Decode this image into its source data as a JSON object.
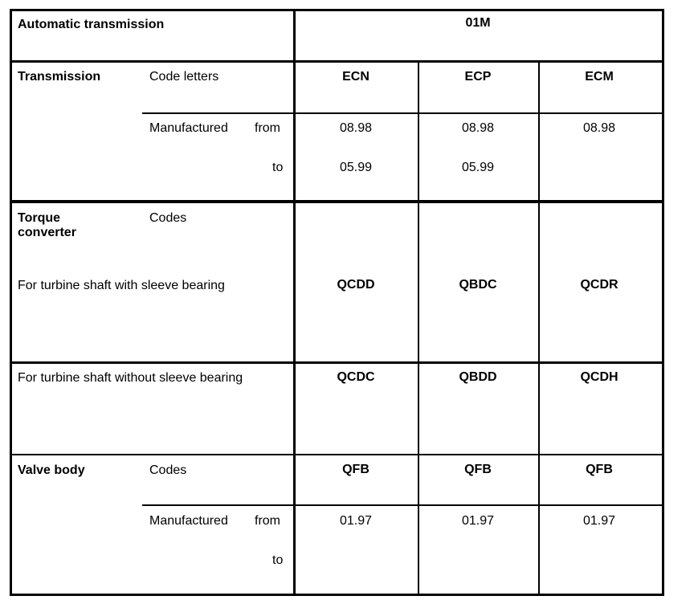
{
  "header": {
    "title": "Automatic transmission",
    "model": "01M"
  },
  "transmission": {
    "label": "Transmission",
    "code_label": "Code letters",
    "codes": [
      "ECN",
      "ECP",
      "ECM"
    ],
    "manufactured_label": "Manufactured",
    "from_label": "from",
    "to_label": "to",
    "from": [
      "08.98",
      "08.98",
      "08.98"
    ],
    "to": [
      "05.99",
      "05.99",
      ""
    ]
  },
  "torque_converter": {
    "label": "Torque converter",
    "codes_label": "Codes",
    "with_sleeve_label": "For turbine shaft with sleeve bearing",
    "with_sleeve": [
      "QCDD",
      "QBDC",
      "QCDR"
    ],
    "without_sleeve_label": "For turbine shaft without sleeve bearing",
    "without_sleeve": [
      "QCDC",
      "QBDD",
      "QCDH"
    ]
  },
  "valve_body": {
    "label": "Valve body",
    "codes_label": "Codes",
    "codes": [
      "QFB",
      "QFB",
      "QFB"
    ],
    "manufactured_label": "Manufactured",
    "from_label": "from",
    "to_label": "to",
    "from": [
      "01.97",
      "01.97",
      "01.97"
    ],
    "to": [
      "",
      "",
      ""
    ]
  }
}
